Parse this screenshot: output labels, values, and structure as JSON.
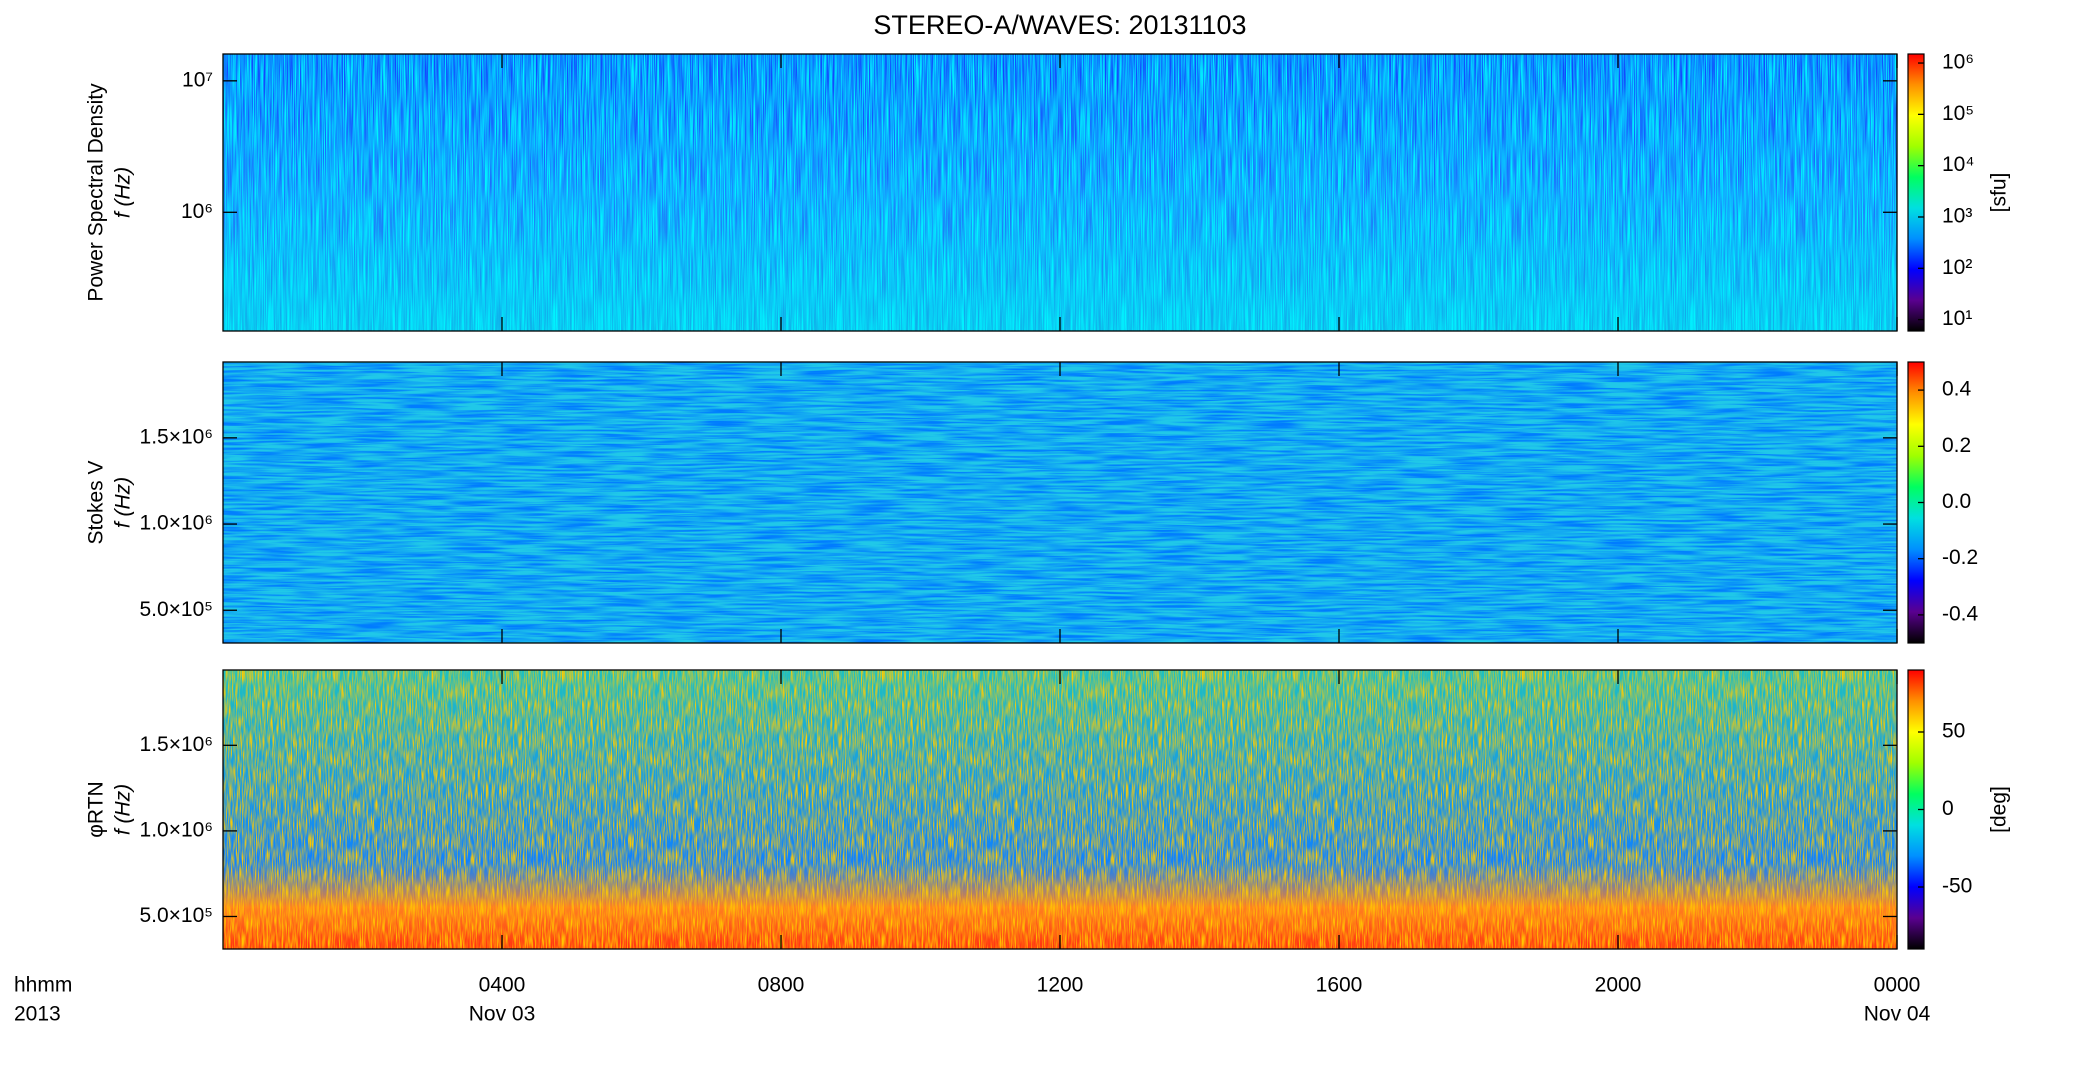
{
  "title": "STEREO-A/WAVES: 20131103",
  "x_axis": {
    "xlim": [
      0,
      24
    ],
    "xticks": [
      {
        "value": 4,
        "label": "0400"
      },
      {
        "value": 8,
        "label": "0800"
      },
      {
        "value": 12,
        "label": "1200"
      },
      {
        "value": 16,
        "label": "1600"
      },
      {
        "value": 20,
        "label": "2000"
      },
      {
        "value": 24,
        "label": "0000"
      }
    ],
    "xtick_dates": [
      {
        "value": 4,
        "label": "Nov 03"
      },
      {
        "value": 24,
        "label": "Nov 04"
      }
    ],
    "corner_labels": [
      "hhmm",
      "2013"
    ]
  },
  "colormap": [
    "#000000",
    "#5a0090",
    "#0000ff",
    "#0090ff",
    "#00e0e0",
    "#00ff60",
    "#a0ff00",
    "#ffff00",
    "#ff9000",
    "#ff0000"
  ],
  "chart_data": [
    {
      "type": "heatmap",
      "ylabel": [
        "Power Spectral Density",
        "f (Hz)"
      ],
      "ylog": true,
      "ylim": [
        125000,
        16000000
      ],
      "yticks": [
        {
          "value": 1000000,
          "label": "10⁶"
        },
        {
          "value": 10000000,
          "label": "10⁷"
        }
      ],
      "clog": true,
      "clim": [
        6,
        1500000
      ],
      "cticks": [
        {
          "value": 10,
          "label": "10¹"
        },
        {
          "value": 100,
          "label": "10²"
        },
        {
          "value": 1000,
          "label": "10³"
        },
        {
          "value": 10000,
          "label": "10⁴"
        },
        {
          "value": 100000,
          "label": "10⁵"
        },
        {
          "value": 1000000,
          "label": "10⁶"
        }
      ],
      "clabel": "[sfu]"
    },
    {
      "type": "heatmap",
      "ylabel": [
        "Stokes V",
        "f (Hz)"
      ],
      "ylog": false,
      "ylim": [
        310000,
        1940000
      ],
      "yticks": [
        {
          "value": 500000,
          "label": "5.0×10⁵"
        },
        {
          "value": 1000000,
          "label": "1.0×10⁶"
        },
        {
          "value": 1500000,
          "label": "1.5×10⁶"
        }
      ],
      "clog": false,
      "clim": [
        -0.5,
        0.5
      ],
      "cticks": [
        {
          "value": -0.4,
          "label": "-0.4"
        },
        {
          "value": -0.2,
          "label": "-0.2"
        },
        {
          "value": 0,
          "label": "0.0"
        },
        {
          "value": 0.2,
          "label": "0.2"
        },
        {
          "value": 0.4,
          "label": "0.4"
        }
      ]
    },
    {
      "type": "heatmap",
      "ylabel": [
        "φRTN",
        "f (Hz)"
      ],
      "ylog": false,
      "ylim": [
        310000,
        1940000
      ],
      "yticks": [
        {
          "value": 500000,
          "label": "5.0×10⁵"
        },
        {
          "value": 1000000,
          "label": "1.0×10⁶"
        },
        {
          "value": 1500000,
          "label": "1.5×10⁶"
        }
      ],
      "clog": false,
      "clim": [
        -90,
        90
      ],
      "cticks": [
        -50,
        0,
        50
      ],
      "clabel": "[deg]"
    }
  ]
}
